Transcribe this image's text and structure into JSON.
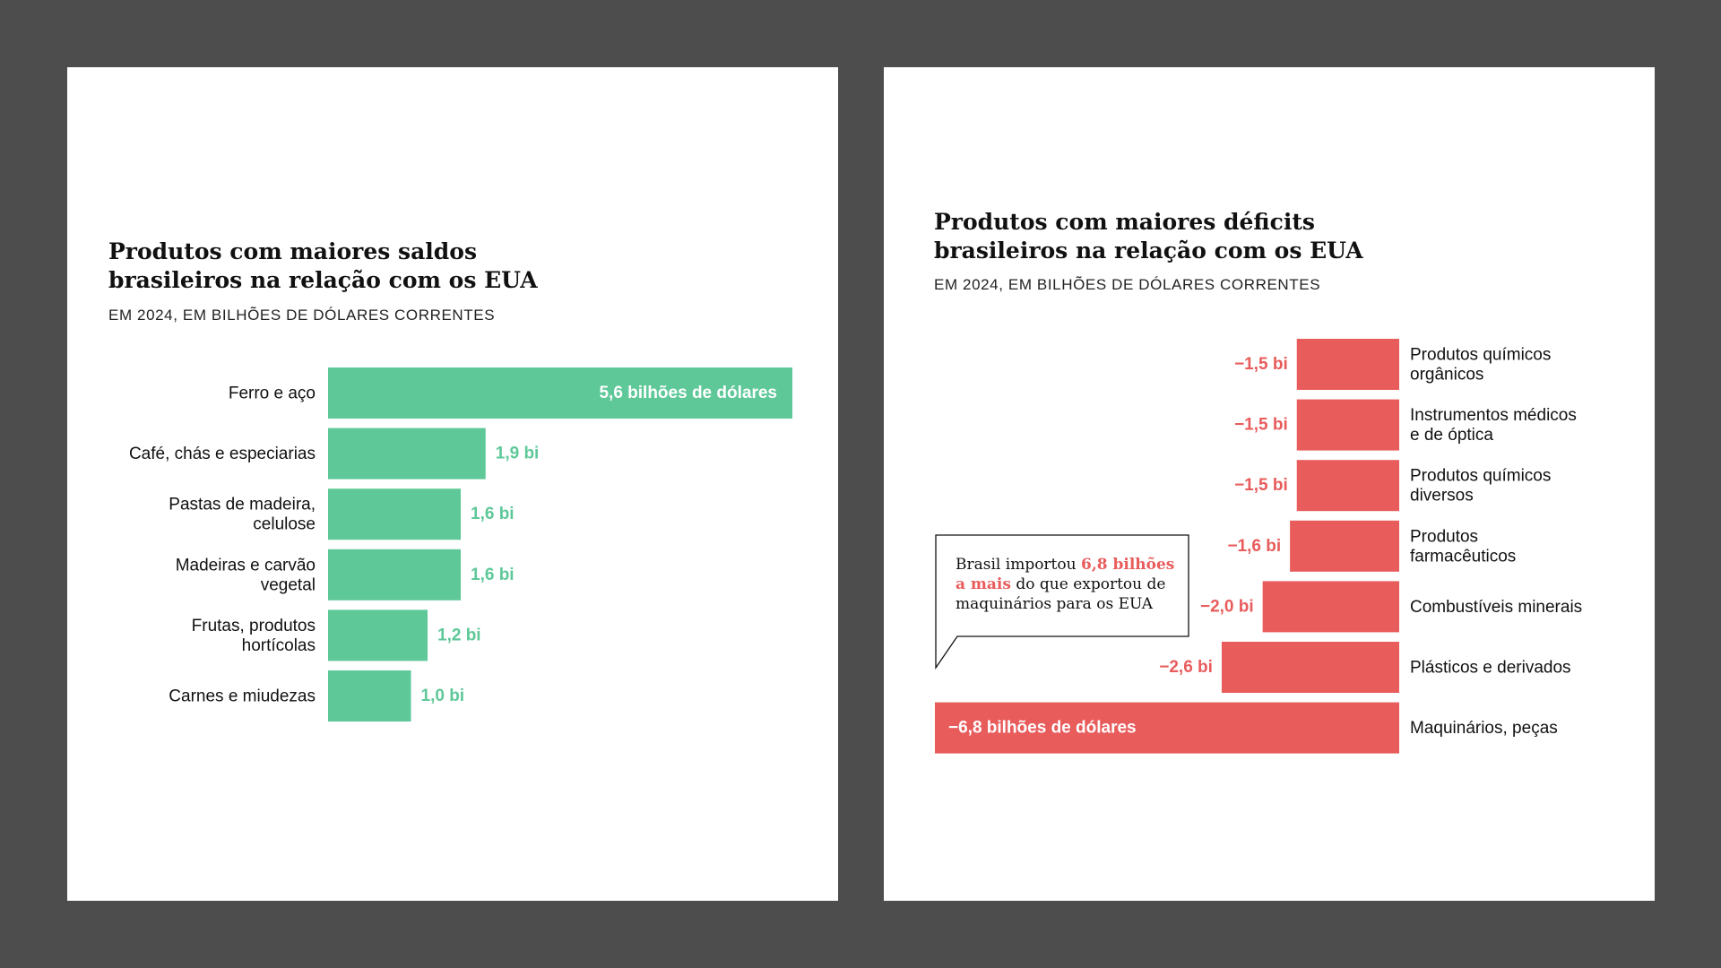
{
  "colors": {
    "positive": "#5ec898",
    "negative": "#e85c5c",
    "background": "#4d4d4d",
    "panel": "#ffffff"
  },
  "chart_data": [
    {
      "type": "bar",
      "orientation": "horizontal",
      "title": [
        "Produtos com maiores saldos",
        "brasileiros na relação com os EUA"
      ],
      "subtitle": "EM 2024, EM BILHÕES DE DÓLARES CORRENTES",
      "categories": [
        [
          "Ferro e aço"
        ],
        [
          "Café, chás e especiarias"
        ],
        [
          "Pastas de madeira,",
          "celulose"
        ],
        [
          "Madeiras e carvão",
          "vegetal"
        ],
        [
          "Frutas, produtos",
          "hortícolas"
        ],
        [
          "Carnes e miudezas"
        ]
      ],
      "values": [
        5.6,
        1.9,
        1.6,
        1.6,
        1.2,
        1.0
      ],
      "value_labels": [
        "5,6 bilhões de dólares",
        "1,9 bi",
        "1,6 bi",
        "1,6 bi",
        "1,2 bi",
        "1,0 bi"
      ],
      "color": "#5ec898"
    },
    {
      "type": "bar",
      "orientation": "horizontal",
      "title": [
        "Produtos com maiores déficits",
        "brasileiros na relação com os EUA"
      ],
      "subtitle": "EM 2024, EM BILHÕES DE DÓLARES CORRENTES",
      "categories": [
        [
          "Produtos químicos",
          "orgânicos"
        ],
        [
          "Instrumentos médicos",
          "e de óptica"
        ],
        [
          "Produtos químicos",
          "diversos"
        ],
        [
          "Produtos",
          "farmacêuticos"
        ],
        [
          "Combustíveis minerais"
        ],
        [
          "Plásticos e derivados"
        ],
        [
          "Maquinários, peças"
        ]
      ],
      "values": [
        -1.5,
        -1.5,
        -1.5,
        -1.6,
        -2.0,
        -2.6,
        -6.8
      ],
      "value_labels": [
        "−1,5 bi",
        "−1,5 bi",
        "−1,5 bi",
        "−1,6 bi",
        "−2,0 bi",
        "−2,6 bi",
        "−6,8 bilhões de dólares"
      ],
      "color": "#e85c5c",
      "annotation": {
        "lines": [
          [
            {
              "text": "Brasil importou ",
              "highlight": false
            },
            {
              "text": "6,8 bilhões",
              "highlight": true
            }
          ],
          [
            {
              "text": "a mais",
              "highlight": true
            },
            {
              "text": " do que exportou de",
              "highlight": false
            }
          ],
          [
            {
              "text": "maquinários para os EUA",
              "highlight": false
            }
          ]
        ]
      }
    }
  ]
}
